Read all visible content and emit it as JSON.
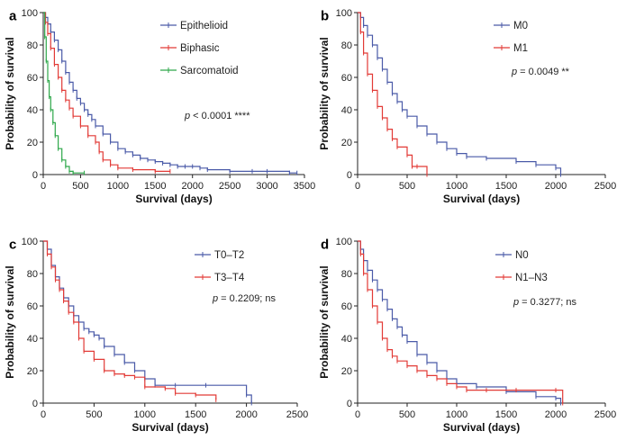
{
  "chart_data": [
    {
      "id": "a",
      "type": "line",
      "panel_label": "a",
      "xlabel": "Survival (days)",
      "ylabel": "Probability of survival",
      "xlim": [
        0,
        3500
      ],
      "ylim": [
        0,
        100
      ],
      "xticks": [
        "0",
        "500",
        "1000",
        "1500",
        "2000",
        "2500",
        "3000",
        "3500"
      ],
      "yticks": [
        "0",
        "20",
        "40",
        "60",
        "80",
        "100"
      ],
      "legend_position": "top-right",
      "p_label": "p",
      "p_text": " < 0.0001 ****",
      "series": [
        {
          "name": "Epithelioid",
          "color": "#4a5aa8",
          "x": [
            0,
            30,
            60,
            100,
            150,
            200,
            250,
            300,
            350,
            400,
            450,
            500,
            550,
            600,
            650,
            700,
            800,
            900,
            1000,
            1100,
            1200,
            1300,
            1400,
            1500,
            1600,
            1700,
            1800,
            1900,
            2000,
            2100,
            2200,
            2500,
            2800,
            3000,
            3300,
            3400
          ],
          "y": [
            100,
            97,
            93,
            88,
            83,
            77,
            70,
            63,
            57,
            52,
            47,
            44,
            40,
            37,
            34,
            30,
            25,
            20,
            16,
            14,
            12,
            10,
            9,
            8,
            7,
            6,
            5,
            5,
            5,
            4,
            3,
            2,
            2,
            2,
            1,
            1
          ]
        },
        {
          "name": "Biphasic",
          "color": "#e23a36",
          "x": [
            0,
            30,
            60,
            100,
            150,
            200,
            250,
            300,
            350,
            400,
            500,
            600,
            700,
            750,
            800,
            900,
            1000,
            1200,
            1500,
            1700
          ],
          "y": [
            100,
            94,
            87,
            78,
            68,
            60,
            52,
            46,
            41,
            36,
            30,
            24,
            20,
            14,
            9,
            6,
            4,
            3,
            2,
            2
          ]
        },
        {
          "name": "Sarcomatoid",
          "color": "#2ea84a",
          "x": [
            0,
            20,
            40,
            60,
            80,
            100,
            130,
            160,
            200,
            250,
            300,
            350,
            400,
            550
          ],
          "y": [
            100,
            85,
            70,
            58,
            48,
            40,
            32,
            24,
            16,
            9,
            5,
            2,
            1,
            1
          ]
        }
      ]
    },
    {
      "id": "b",
      "type": "line",
      "panel_label": "b",
      "xlabel": "Survival (days)",
      "ylabel": "Probability of survival",
      "xlim": [
        0,
        2500
      ],
      "ylim": [
        0,
        100
      ],
      "xticks": [
        "0",
        "500",
        "1000",
        "1500",
        "2000",
        "2500"
      ],
      "yticks": [
        "0",
        "20",
        "40",
        "60",
        "80",
        "100"
      ],
      "legend_position": "top-right",
      "p_label": "p",
      "p_text": " = 0.0049 **",
      "series": [
        {
          "name": "M0",
          "color": "#4a5aa8",
          "x": [
            0,
            30,
            60,
            100,
            150,
            200,
            250,
            300,
            350,
            400,
            450,
            500,
            600,
            700,
            800,
            900,
            1000,
            1100,
            1300,
            1600,
            1800,
            2000,
            2050
          ],
          "y": [
            100,
            97,
            92,
            86,
            80,
            72,
            65,
            57,
            50,
            45,
            40,
            36,
            30,
            25,
            20,
            16,
            13,
            11,
            10,
            8,
            6,
            4,
            0
          ]
        },
        {
          "name": "M1",
          "color": "#e23a36",
          "x": [
            0,
            30,
            60,
            100,
            150,
            200,
            250,
            300,
            350,
            400,
            500,
            550,
            600,
            700
          ],
          "y": [
            100,
            88,
            75,
            62,
            52,
            42,
            35,
            28,
            22,
            17,
            12,
            5,
            5,
            0
          ]
        }
      ]
    },
    {
      "id": "c",
      "type": "line",
      "panel_label": "c",
      "xlabel": "Survival (days)",
      "ylabel": "Probability of survival",
      "xlim": [
        0,
        2500
      ],
      "ylim": [
        0,
        100
      ],
      "xticks": [
        "0",
        "500",
        "1000",
        "1500",
        "2000",
        "2500"
      ],
      "yticks": [
        "0",
        "20",
        "40",
        "60",
        "80",
        "100"
      ],
      "legend_position": "top-right",
      "p_label": "p",
      "p_text": " = 0.2209; ns",
      "series": [
        {
          "name": "T0–T2",
          "color": "#4a5aa8",
          "x": [
            0,
            40,
            80,
            120,
            160,
            200,
            250,
            300,
            350,
            400,
            450,
            500,
            550,
            600,
            700,
            800,
            900,
            1000,
            1100,
            1300,
            1600,
            2000,
            2050
          ],
          "y": [
            100,
            95,
            85,
            78,
            71,
            65,
            60,
            54,
            50,
            46,
            44,
            42,
            40,
            35,
            30,
            25,
            20,
            15,
            11,
            11,
            11,
            5,
            0
          ]
        },
        {
          "name": "T3–T4",
          "color": "#e23a36",
          "x": [
            0,
            40,
            80,
            120,
            160,
            200,
            250,
            300,
            350,
            400,
            500,
            600,
            700,
            800,
            900,
            1000,
            1200,
            1300,
            1500,
            1700
          ],
          "y": [
            100,
            92,
            84,
            76,
            70,
            63,
            56,
            50,
            40,
            32,
            27,
            20,
            18,
            17,
            16,
            10,
            9,
            6,
            5,
            2
          ]
        }
      ]
    },
    {
      "id": "d",
      "type": "line",
      "panel_label": "d",
      "xlabel": "Survival (days)",
      "ylabel": "Probability of survival",
      "xlim": [
        0,
        2500
      ],
      "ylim": [
        0,
        100
      ],
      "xticks": [
        "0",
        "500",
        "1000",
        "1500",
        "2000",
        "2500"
      ],
      "yticks": [
        "0",
        "20",
        "40",
        "60",
        "80",
        "100"
      ],
      "legend_position": "top-right",
      "p_label": "p",
      "p_text": " = 0.3277; ns",
      "series": [
        {
          "name": "N0",
          "color": "#4a5aa8",
          "x": [
            0,
            30,
            60,
            100,
            150,
            200,
            250,
            300,
            350,
            400,
            450,
            500,
            600,
            700,
            800,
            900,
            1000,
            1200,
            1500,
            1800,
            2000,
            2050
          ],
          "y": [
            100,
            95,
            88,
            82,
            76,
            70,
            64,
            58,
            52,
            47,
            42,
            38,
            30,
            25,
            20,
            15,
            12,
            10,
            7,
            4,
            3,
            0
          ]
        },
        {
          "name": "N1–N3",
          "color": "#e23a36",
          "x": [
            0,
            30,
            60,
            100,
            150,
            200,
            250,
            300,
            350,
            400,
            500,
            600,
            700,
            800,
            900,
            1000,
            1100,
            1300,
            1600,
            2000,
            2070
          ],
          "y": [
            100,
            92,
            80,
            70,
            60,
            50,
            40,
            33,
            29,
            26,
            23,
            20,
            17,
            15,
            12,
            10,
            8,
            8,
            8,
            8,
            0
          ]
        }
      ]
    }
  ]
}
